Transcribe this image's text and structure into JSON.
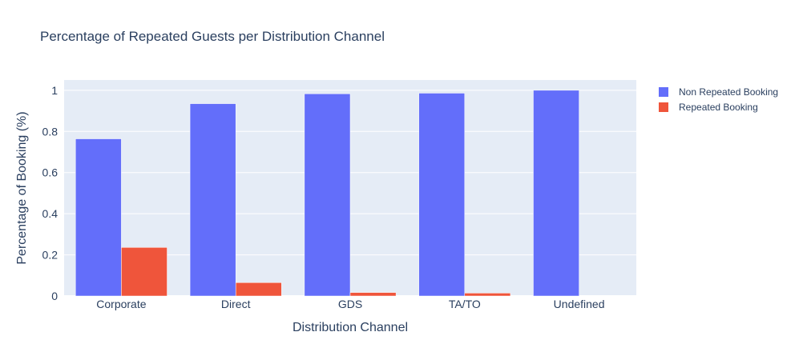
{
  "chart_data": {
    "type": "bar",
    "title": "Percentage of Repeated Guests per Distribution Channel",
    "xlabel": "Distribution Channel",
    "ylabel": "Percentage of Booking (%)",
    "categories": [
      "Corporate",
      "Direct",
      "GDS",
      "TA/TO",
      "Undefined"
    ],
    "series": [
      {
        "name": "Non Repeated Booking",
        "values": [
          0.764,
          0.935,
          0.983,
          0.986,
          1.0
        ],
        "color": "#636efa"
      },
      {
        "name": "Repeated Booking",
        "values": [
          0.236,
          0.065,
          0.017,
          0.014,
          0.0
        ],
        "color": "#ef553b"
      }
    ],
    "ylim": [
      0,
      1.05
    ],
    "yticks": [
      0,
      0.2,
      0.4,
      0.6,
      0.8,
      1
    ],
    "ytick_labels": [
      "0",
      "0.2",
      "0.4",
      "0.6",
      "0.8",
      "1"
    ],
    "grid": true,
    "legend_position": "top-right",
    "plot_background": "#e5ecf6"
  }
}
